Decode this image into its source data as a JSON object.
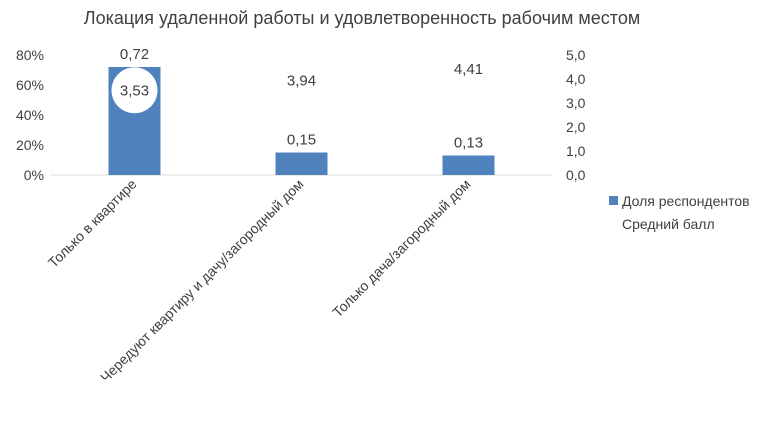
{
  "chart_data": {
    "type": "bar",
    "title": "Локация удаленной работы и удовлетворенность рабочим местом",
    "categories": [
      "Только в квартире",
      "Чередуют квартиру и дачу/загородный дом",
      "Только дача/загородный дом"
    ],
    "series": [
      {
        "name": "Доля респондентов",
        "axis": "left",
        "values": [
          0.72,
          0.15,
          0.13
        ],
        "labels": [
          "0,72",
          "0,15",
          "0,13"
        ],
        "color": "#4f81bd"
      },
      {
        "name": "Средний балл",
        "axis": "right",
        "values": [
          3.53,
          3.94,
          4.41
        ],
        "labels": [
          "3,53",
          "3,94",
          "4,41"
        ],
        "color": "#ffffff"
      }
    ],
    "y_left": {
      "ylim": [
        0,
        0.8
      ],
      "ticks": [
        "0%",
        "20%",
        "40%",
        "60%",
        "80%"
      ]
    },
    "y_right": {
      "ylim": [
        0,
        5
      ],
      "ticks": [
        "0,0",
        "1,0",
        "2,0",
        "3,0",
        "4,0",
        "5,0"
      ]
    },
    "grid": false,
    "legend_position": "right"
  }
}
